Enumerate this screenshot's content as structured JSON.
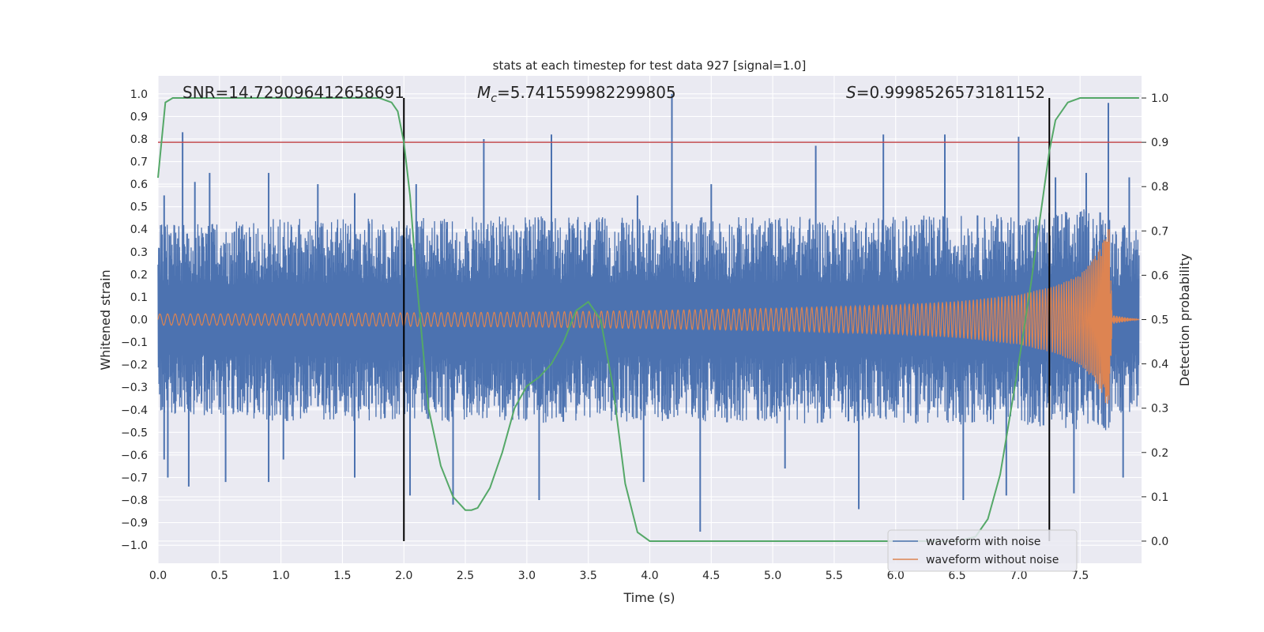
{
  "chart_data": {
    "type": "line",
    "title": "stats at each timestep for test data 927 [signal=1.0]",
    "xlabel": "Time (s)",
    "ylabel_left": "Whitened strain",
    "ylabel_right": "Detection probability",
    "xlim": [
      0.0,
      8.0
    ],
    "ylim_left": [
      -1.08,
      1.08
    ],
    "ylim_right": [
      -0.05,
      1.05
    ],
    "x_ticks": [
      "0.0",
      "0.5",
      "1.0",
      "1.5",
      "2.0",
      "2.5",
      "3.0",
      "3.5",
      "4.0",
      "4.5",
      "5.0",
      "5.5",
      "6.0",
      "6.5",
      "7.0",
      "7.5"
    ],
    "y_ticks_left": [
      "1.0",
      "0.9",
      "0.8",
      "0.7",
      "0.6",
      "0.5",
      "0.4",
      "0.3",
      "0.2",
      "0.1",
      "0.0",
      "−0.1",
      "−0.2",
      "−0.3",
      "−0.4",
      "−0.5",
      "−0.6",
      "−0.7",
      "−0.8",
      "−0.9",
      "−1.0"
    ],
    "y_ticks_right": [
      "1.0",
      "0.9",
      "0.8",
      "0.7",
      "0.6",
      "0.5",
      "0.4",
      "0.3",
      "0.2",
      "0.1",
      "0.0"
    ],
    "annotations": {
      "snr": "SNR=14.729096412658691",
      "mc_symbol": "M",
      "mc_sub": "c",
      "mc_value": "=5.741559982299805",
      "s_symbol": "S",
      "s_value": "=0.9998526573181152"
    },
    "threshold": 0.9,
    "vlines": [
      2.0,
      7.25
    ],
    "series": [
      {
        "name": "waveform with noise",
        "color": "#4c72b0",
        "envelope_upper": [
          [
            0.0,
            0.42
          ],
          [
            1.0,
            0.45
          ],
          [
            2.0,
            0.45
          ],
          [
            3.0,
            0.46
          ],
          [
            4.0,
            0.45
          ],
          [
            5.0,
            0.46
          ],
          [
            6.0,
            0.46
          ],
          [
            7.0,
            0.47
          ],
          [
            7.74,
            0.5
          ],
          [
            7.75,
            0.42
          ],
          [
            7.98,
            0.42
          ]
        ],
        "envelope_lower": [
          [
            0.0,
            -0.42
          ],
          [
            1.0,
            -0.45
          ],
          [
            2.0,
            -0.45
          ],
          [
            3.0,
            -0.46
          ],
          [
            4.0,
            -0.45
          ],
          [
            5.0,
            -0.46
          ],
          [
            6.0,
            -0.46
          ],
          [
            7.0,
            -0.47
          ],
          [
            7.74,
            -0.5
          ],
          [
            7.75,
            -0.42
          ],
          [
            7.98,
            -0.42
          ]
        ],
        "spikes_up": [
          [
            0.05,
            0.55
          ],
          [
            0.2,
            0.83
          ],
          [
            0.3,
            0.61
          ],
          [
            0.42,
            0.65
          ],
          [
            0.9,
            0.65
          ],
          [
            1.3,
            0.6
          ],
          [
            1.6,
            0.56
          ],
          [
            2.1,
            0.6
          ],
          [
            2.65,
            0.8
          ],
          [
            3.2,
            0.82
          ],
          [
            3.9,
            0.55
          ],
          [
            4.18,
            1.0
          ],
          [
            4.5,
            0.6
          ],
          [
            5.35,
            0.77
          ],
          [
            5.9,
            0.82
          ],
          [
            6.4,
            0.82
          ],
          [
            7.0,
            0.81
          ],
          [
            7.3,
            0.63
          ],
          [
            7.55,
            0.65
          ],
          [
            7.73,
            0.96
          ],
          [
            7.9,
            0.63
          ]
        ],
        "spikes_down": [
          [
            0.05,
            -0.62
          ],
          [
            0.08,
            -0.7
          ],
          [
            0.25,
            -0.74
          ],
          [
            0.55,
            -0.72
          ],
          [
            0.9,
            -0.72
          ],
          [
            1.02,
            -0.62
          ],
          [
            1.6,
            -0.7
          ],
          [
            2.05,
            -0.78
          ],
          [
            2.4,
            -0.82
          ],
          [
            3.1,
            -0.8
          ],
          [
            3.95,
            -0.72
          ],
          [
            4.41,
            -0.94
          ],
          [
            5.1,
            -0.66
          ],
          [
            5.7,
            -0.84
          ],
          [
            6.55,
            -0.8
          ],
          [
            6.9,
            -0.78
          ],
          [
            7.45,
            -0.77
          ],
          [
            7.85,
            -0.7
          ]
        ]
      },
      {
        "name": "waveform without noise",
        "color": "#dd8452",
        "amplitude": [
          [
            0.0,
            0.025
          ],
          [
            1.0,
            0.026
          ],
          [
            2.0,
            0.03
          ],
          [
            3.0,
            0.033
          ],
          [
            4.0,
            0.04
          ],
          [
            5.0,
            0.05
          ],
          [
            6.0,
            0.065
          ],
          [
            6.5,
            0.08
          ],
          [
            7.0,
            0.11
          ],
          [
            7.3,
            0.15
          ],
          [
            7.5,
            0.2
          ],
          [
            7.6,
            0.26
          ],
          [
            7.7,
            0.36
          ],
          [
            7.74,
            0.42
          ],
          [
            7.76,
            0.02
          ],
          [
            7.98,
            0.0
          ]
        ]
      },
      {
        "name": "detection probability",
        "color": "#55a868",
        "x": [
          0.0,
          0.06,
          0.12,
          0.25,
          0.5,
          1.0,
          1.5,
          1.8,
          1.9,
          1.95,
          2.0,
          2.05,
          2.1,
          2.15,
          2.2,
          2.3,
          2.4,
          2.5,
          2.55,
          2.6,
          2.7,
          2.8,
          2.9,
          3.0,
          3.1,
          3.2,
          3.3,
          3.4,
          3.5,
          3.6,
          3.7,
          3.8,
          3.9,
          4.0,
          4.5,
          5.0,
          5.5,
          6.0,
          6.5,
          6.65,
          6.75,
          6.85,
          7.0,
          7.1,
          7.2,
          7.25,
          7.3,
          7.4,
          7.5,
          7.6,
          7.7,
          7.98
        ],
        "y": [
          0.82,
          0.99,
          1.0,
          1.0,
          1.0,
          1.0,
          1.0,
          1.0,
          0.99,
          0.97,
          0.9,
          0.78,
          0.6,
          0.45,
          0.3,
          0.17,
          0.1,
          0.07,
          0.07,
          0.075,
          0.12,
          0.2,
          0.3,
          0.35,
          0.37,
          0.4,
          0.45,
          0.52,
          0.54,
          0.5,
          0.35,
          0.13,
          0.02,
          0.0,
          0.0,
          0.0,
          0.0,
          0.0,
          0.0,
          0.01,
          0.05,
          0.15,
          0.4,
          0.58,
          0.78,
          0.88,
          0.95,
          0.99,
          1.0,
          1.0,
          1.0,
          1.0
        ]
      }
    ],
    "legend": {
      "placement": "lower right",
      "entries": [
        {
          "label": "waveform with noise",
          "color": "#4c72b0"
        },
        {
          "label": "waveform without noise",
          "color": "#dd8452"
        }
      ]
    },
    "grid": true
  }
}
